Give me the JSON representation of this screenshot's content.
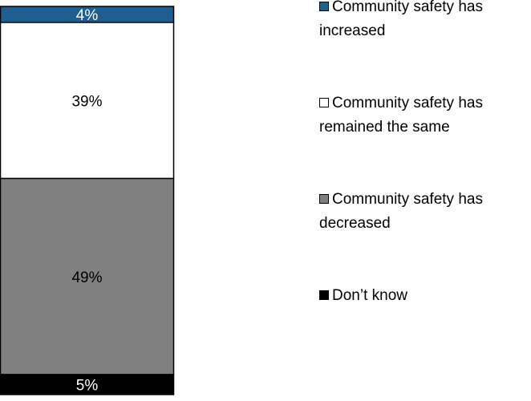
{
  "chart_data": {
    "type": "bar",
    "stacked": true,
    "orientation": "vertical",
    "categories": [
      ""
    ],
    "series": [
      {
        "name": "Community safety has increased",
        "values": [
          4
        ],
        "color": "#1f5f8f",
        "label": "4%",
        "label_color": "#ffffff"
      },
      {
        "name": "Community safety has remained the same",
        "values": [
          39
        ],
        "color": "#ffffff",
        "label": "39%",
        "label_color": "#000000"
      },
      {
        "name": "Community safety has decreased",
        "values": [
          49
        ],
        "color": "#808080",
        "label": "49%",
        "label_color": "#000000"
      },
      {
        "name": "Don’t know",
        "values": [
          5
        ],
        "color": "#000000",
        "label": "5%",
        "label_color": "#ffffff"
      }
    ],
    "ylim": [
      0,
      100
    ],
    "legend_position": "right",
    "grid": false
  }
}
